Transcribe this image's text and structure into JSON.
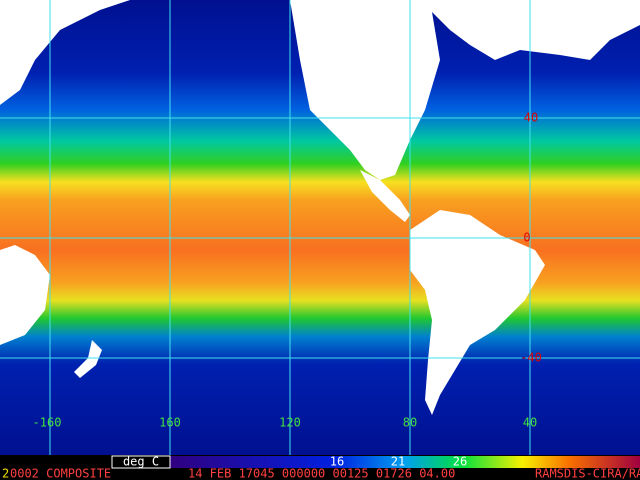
{
  "map": {
    "lon_labels": [
      "-160",
      "160",
      "120",
      "80",
      "40"
    ],
    "lat_labels": [
      "40",
      "0",
      "-40"
    ],
    "legend": {
      "unit": "deg C",
      "ticks": [
        "16",
        "21",
        "26"
      ]
    },
    "footer": {
      "prefix": "2",
      "product": "0002 COMPOSITE",
      "info": "14 FEB 17045 000000 00125 01726 04.00",
      "source": "RAMSDIS-CIRA/RAMM"
    }
  }
}
